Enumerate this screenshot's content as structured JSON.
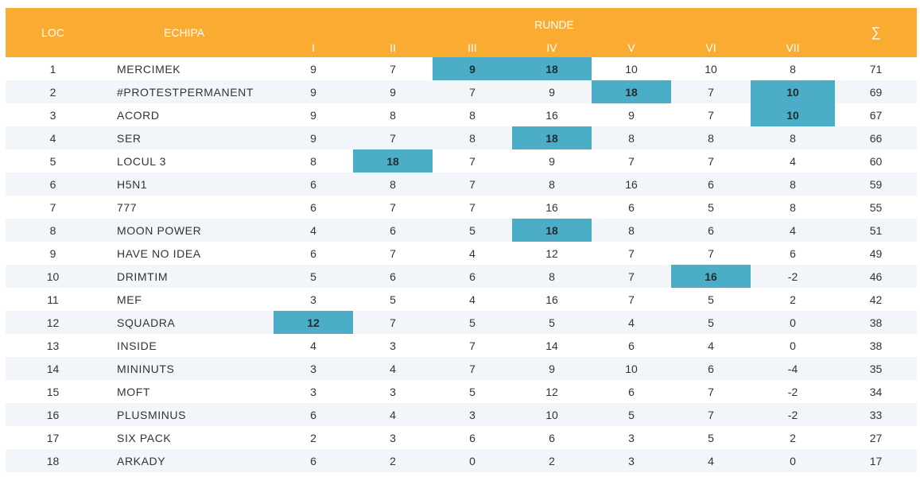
{
  "header": {
    "loc": "LOC",
    "team": "ECHIPA",
    "rounds_title": "RUNDE",
    "rounds": [
      "I",
      "II",
      "III",
      "IV",
      "V",
      "VI",
      "VII"
    ],
    "sum": "∑"
  },
  "colors": {
    "header_bg": "#f9ac31",
    "highlight": "#4baec6",
    "stripe": "#f2f5fa"
  },
  "rows": [
    {
      "loc": "1",
      "team": "MERCIMEK",
      "scores": [
        "9",
        "7",
        "9",
        "18",
        "10",
        "10",
        "8"
      ],
      "highlight": [
        2,
        3
      ],
      "sum": "71"
    },
    {
      "loc": "2",
      "team": "#PROTESTPERMANENT",
      "scores": [
        "9",
        "9",
        "7",
        "9",
        "18",
        "7",
        "10"
      ],
      "highlight": [
        4,
        6
      ],
      "sum": "69"
    },
    {
      "loc": "3",
      "team": "ACORD",
      "scores": [
        "9",
        "8",
        "8",
        "16",
        "9",
        "7",
        "10"
      ],
      "highlight": [
        6
      ],
      "sum": "67"
    },
    {
      "loc": "4",
      "team": "SER",
      "scores": [
        "9",
        "7",
        "8",
        "18",
        "8",
        "8",
        "8"
      ],
      "highlight": [
        3
      ],
      "sum": "66"
    },
    {
      "loc": "5",
      "team": "LOCUL 3",
      "scores": [
        "8",
        "18",
        "7",
        "9",
        "7",
        "7",
        "4"
      ],
      "highlight": [
        1
      ],
      "sum": "60"
    },
    {
      "loc": "6",
      "team": "H5N1",
      "scores": [
        "6",
        "8",
        "7",
        "8",
        "16",
        "6",
        "8"
      ],
      "highlight": [],
      "sum": "59"
    },
    {
      "loc": "7",
      "team": "777",
      "scores": [
        "6",
        "7",
        "7",
        "16",
        "6",
        "5",
        "8"
      ],
      "highlight": [],
      "sum": "55"
    },
    {
      "loc": "8",
      "team": "MOON POWER",
      "scores": [
        "4",
        "6",
        "5",
        "18",
        "8",
        "6",
        "4"
      ],
      "highlight": [
        3
      ],
      "sum": "51"
    },
    {
      "loc": "9",
      "team": "HAVE NO IDEA",
      "scores": [
        "6",
        "7",
        "4",
        "12",
        "7",
        "7",
        "6"
      ],
      "highlight": [],
      "sum": "49"
    },
    {
      "loc": "10",
      "team": "DRIMTIM",
      "scores": [
        "5",
        "6",
        "6",
        "8",
        "7",
        "16",
        "-2"
      ],
      "highlight": [
        5
      ],
      "sum": "46"
    },
    {
      "loc": "11",
      "team": "MEF",
      "scores": [
        "3",
        "5",
        "4",
        "16",
        "7",
        "5",
        "2"
      ],
      "highlight": [],
      "sum": "42"
    },
    {
      "loc": "12",
      "team": "SQUADRA",
      "scores": [
        "12",
        "7",
        "5",
        "5",
        "4",
        "5",
        "0"
      ],
      "highlight": [
        0
      ],
      "sum": "38"
    },
    {
      "loc": "13",
      "team": "INSIDE",
      "scores": [
        "4",
        "3",
        "7",
        "14",
        "6",
        "4",
        "0"
      ],
      "highlight": [],
      "sum": "38"
    },
    {
      "loc": "14",
      "team": "MININUTS",
      "scores": [
        "3",
        "4",
        "7",
        "9",
        "10",
        "6",
        "-4"
      ],
      "highlight": [],
      "sum": "35"
    },
    {
      "loc": "15",
      "team": "MOFT",
      "scores": [
        "3",
        "3",
        "5",
        "12",
        "6",
        "7",
        "-2"
      ],
      "highlight": [],
      "sum": "34"
    },
    {
      "loc": "16",
      "team": "PLUSMINUS",
      "scores": [
        "6",
        "4",
        "3",
        "10",
        "5",
        "7",
        "-2"
      ],
      "highlight": [],
      "sum": "33"
    },
    {
      "loc": "17",
      "team": "SIX PACK",
      "scores": [
        "2",
        "3",
        "6",
        "6",
        "3",
        "5",
        "2"
      ],
      "highlight": [],
      "sum": "27"
    },
    {
      "loc": "18",
      "team": "ARKADY",
      "scores": [
        "6",
        "2",
        "0",
        "2",
        "3",
        "4",
        "0"
      ],
      "highlight": [],
      "sum": "17"
    }
  ]
}
